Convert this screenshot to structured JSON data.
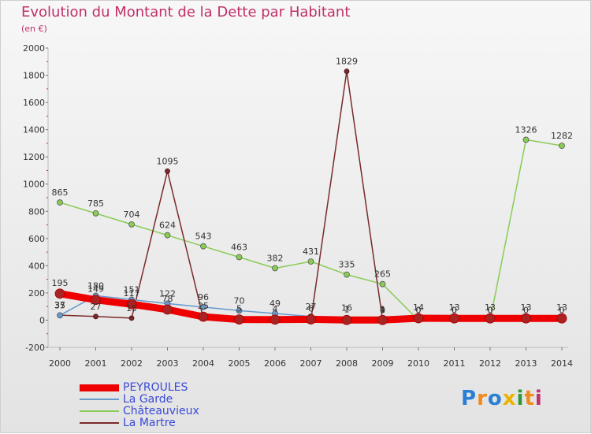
{
  "chart_data": {
    "type": "line",
    "title": "Evolution du Montant de la Dette par Habitant",
    "subtitle": "(en €)",
    "x": [
      "2000",
      "2001",
      "2002",
      "2003",
      "2004",
      "2005",
      "2006",
      "2007",
      "2008",
      "2009",
      "2010",
      "2011",
      "2012",
      "2013",
      "2014"
    ],
    "ylim": [
      -200,
      2000
    ],
    "yticks": [
      "-200",
      "0",
      "200",
      "400",
      "600",
      "800",
      "1000",
      "1200",
      "1400",
      "1600",
      "1800",
      "2000"
    ],
    "grid": false,
    "legend_position": "bottom-left",
    "series": [
      {
        "name": "PEYROULES",
        "color": "#ee0000",
        "values": [
          195,
          149,
          117,
          78,
          25,
          5,
          4,
          6,
          1,
          1,
          14,
          13,
          13,
          13,
          13
        ],
        "labels": [
          "195",
          "149",
          "117",
          "78",
          "25",
          "5",
          "4",
          "6",
          "1",
          "1",
          "14",
          "13",
          "13",
          "13",
          "13"
        ]
      },
      {
        "name": "La Garde",
        "color": "#6699cc",
        "values": [
          35,
          180,
          151,
          122,
          96,
          70,
          49,
          27,
          16,
          0,
          0,
          0,
          0,
          0,
          0
        ],
        "labels": [
          "35",
          "180",
          "151",
          "122",
          "96",
          "70",
          "49",
          "27",
          "16",
          "0",
          "0",
          "0",
          "0",
          "0",
          "0"
        ]
      },
      {
        "name": "Châteauvieux",
        "color": "#88cc55",
        "values": [
          865,
          785,
          704,
          624,
          543,
          463,
          382,
          431,
          335,
          265,
          0,
          0,
          0,
          1326,
          1282
        ],
        "labels": [
          "865",
          "785",
          "704",
          "624",
          "543",
          "463",
          "382",
          "431",
          "335",
          "265",
          "0",
          "0",
          "0",
          "1326",
          "1282"
        ]
      },
      {
        "name": "La Martre",
        "color": "#7a2a2a",
        "values": [
          37,
          27,
          15,
          1095,
          14,
          null,
          null,
          0,
          1829,
          4,
          null,
          null,
          null,
          null,
          null
        ],
        "labels": [
          "37",
          "27",
          "15",
          "1095",
          "",
          "",
          "",
          "",
          "1829",
          "4",
          "",
          "",
          "",
          "",
          ""
        ]
      }
    ]
  },
  "logo": {
    "letters": [
      "P",
      "r",
      "o",
      "x",
      "i",
      "t",
      "i"
    ],
    "colors": [
      "#2a7fd4",
      "#f08a1c",
      "#2a7fd4",
      "#e8b400",
      "#2a9a3a",
      "#f08a1c",
      "#c0306a"
    ]
  }
}
